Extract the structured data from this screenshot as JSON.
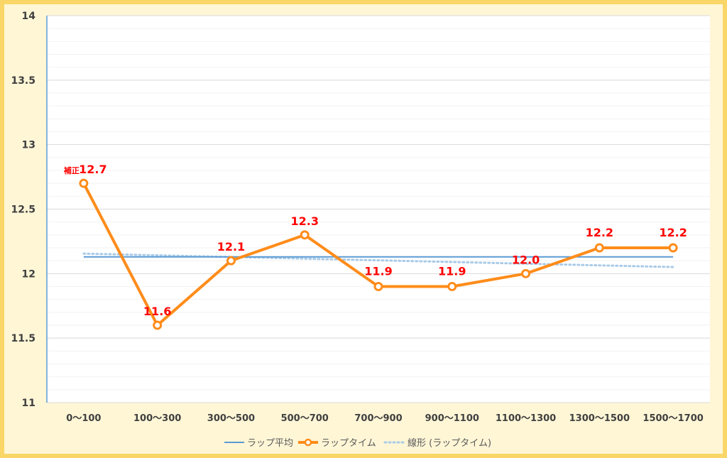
{
  "chart_data": {
    "type": "line",
    "title": "",
    "xlabel": "",
    "ylabel": "",
    "categories": [
      "0～100",
      "100～300",
      "300～500",
      "500～700",
      "700～900",
      "900～1100",
      "1100～1300",
      "1300～1500",
      "1500～1700"
    ],
    "ylim": [
      11,
      14
    ],
    "yticks": [
      "11",
      "11.5",
      "12",
      "12.5",
      "13",
      "13.5",
      "14"
    ],
    "grid": true,
    "legend_position": "bottom",
    "data_labels": [
      "12.7",
      "11.6",
      "12.1",
      "12.3",
      "11.9",
      "11.9",
      "12.0",
      "12.2",
      "12.2"
    ],
    "annotation": "補正",
    "series": [
      {
        "name": "ラップ平均",
        "values": [
          12.13,
          12.13,
          12.13,
          12.13,
          12.13,
          12.13,
          12.13,
          12.13,
          12.13
        ],
        "color": "#5b9bd5",
        "style": "solid"
      },
      {
        "name": "ラップタイム",
        "values": [
          12.7,
          11.6,
          12.1,
          12.3,
          11.9,
          11.9,
          12.0,
          12.2,
          12.2
        ],
        "color": "#ff8c1a",
        "style": "solid-markers"
      },
      {
        "name": "線形 (ラップタイム)",
        "values": [
          12.155,
          12.142,
          12.129,
          12.116,
          12.103,
          12.09,
          12.077,
          12.064,
          12.051
        ],
        "color": "#a9cbe8",
        "style": "dotted"
      }
    ]
  }
}
